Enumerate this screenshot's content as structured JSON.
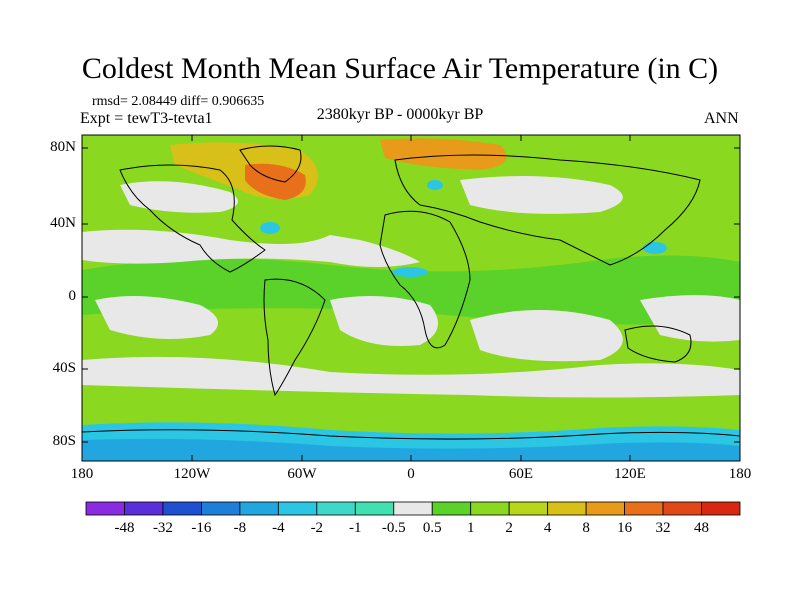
{
  "title": "Coldest Month Mean Surface Air Temperature (in C)",
  "stats": "rmsd= 2.08449 diff= 0.906635",
  "experiment": "Expt = tewT3-tevta1",
  "period": "2380kyr BP - 0000kyr BP",
  "season": "ANN",
  "lat_labels": [
    "80N",
    "40N",
    "0",
    "40S",
    "80S"
  ],
  "lon_labels": [
    "180",
    "120W",
    "60W",
    "0",
    "60E",
    "120E",
    "180"
  ],
  "colorbar": {
    "labels": [
      "-48",
      "-32",
      "-16",
      "-8",
      "-4",
      "-2",
      "-1",
      "-0.5",
      "0.5",
      "1",
      "2",
      "4",
      "8",
      "16",
      "32",
      "48"
    ],
    "colors": [
      "#8a2be2",
      "#5a2fd9",
      "#1f50d0",
      "#1e7fd8",
      "#22a6e0",
      "#2bc6e4",
      "#3fd8c8",
      "#40e0b0",
      "#e8e8e8",
      "#5ad22a",
      "#8ad820",
      "#b8d61a",
      "#d8c018",
      "#e89a1a",
      "#e8701a",
      "#e04818",
      "#d82812"
    ]
  }
}
